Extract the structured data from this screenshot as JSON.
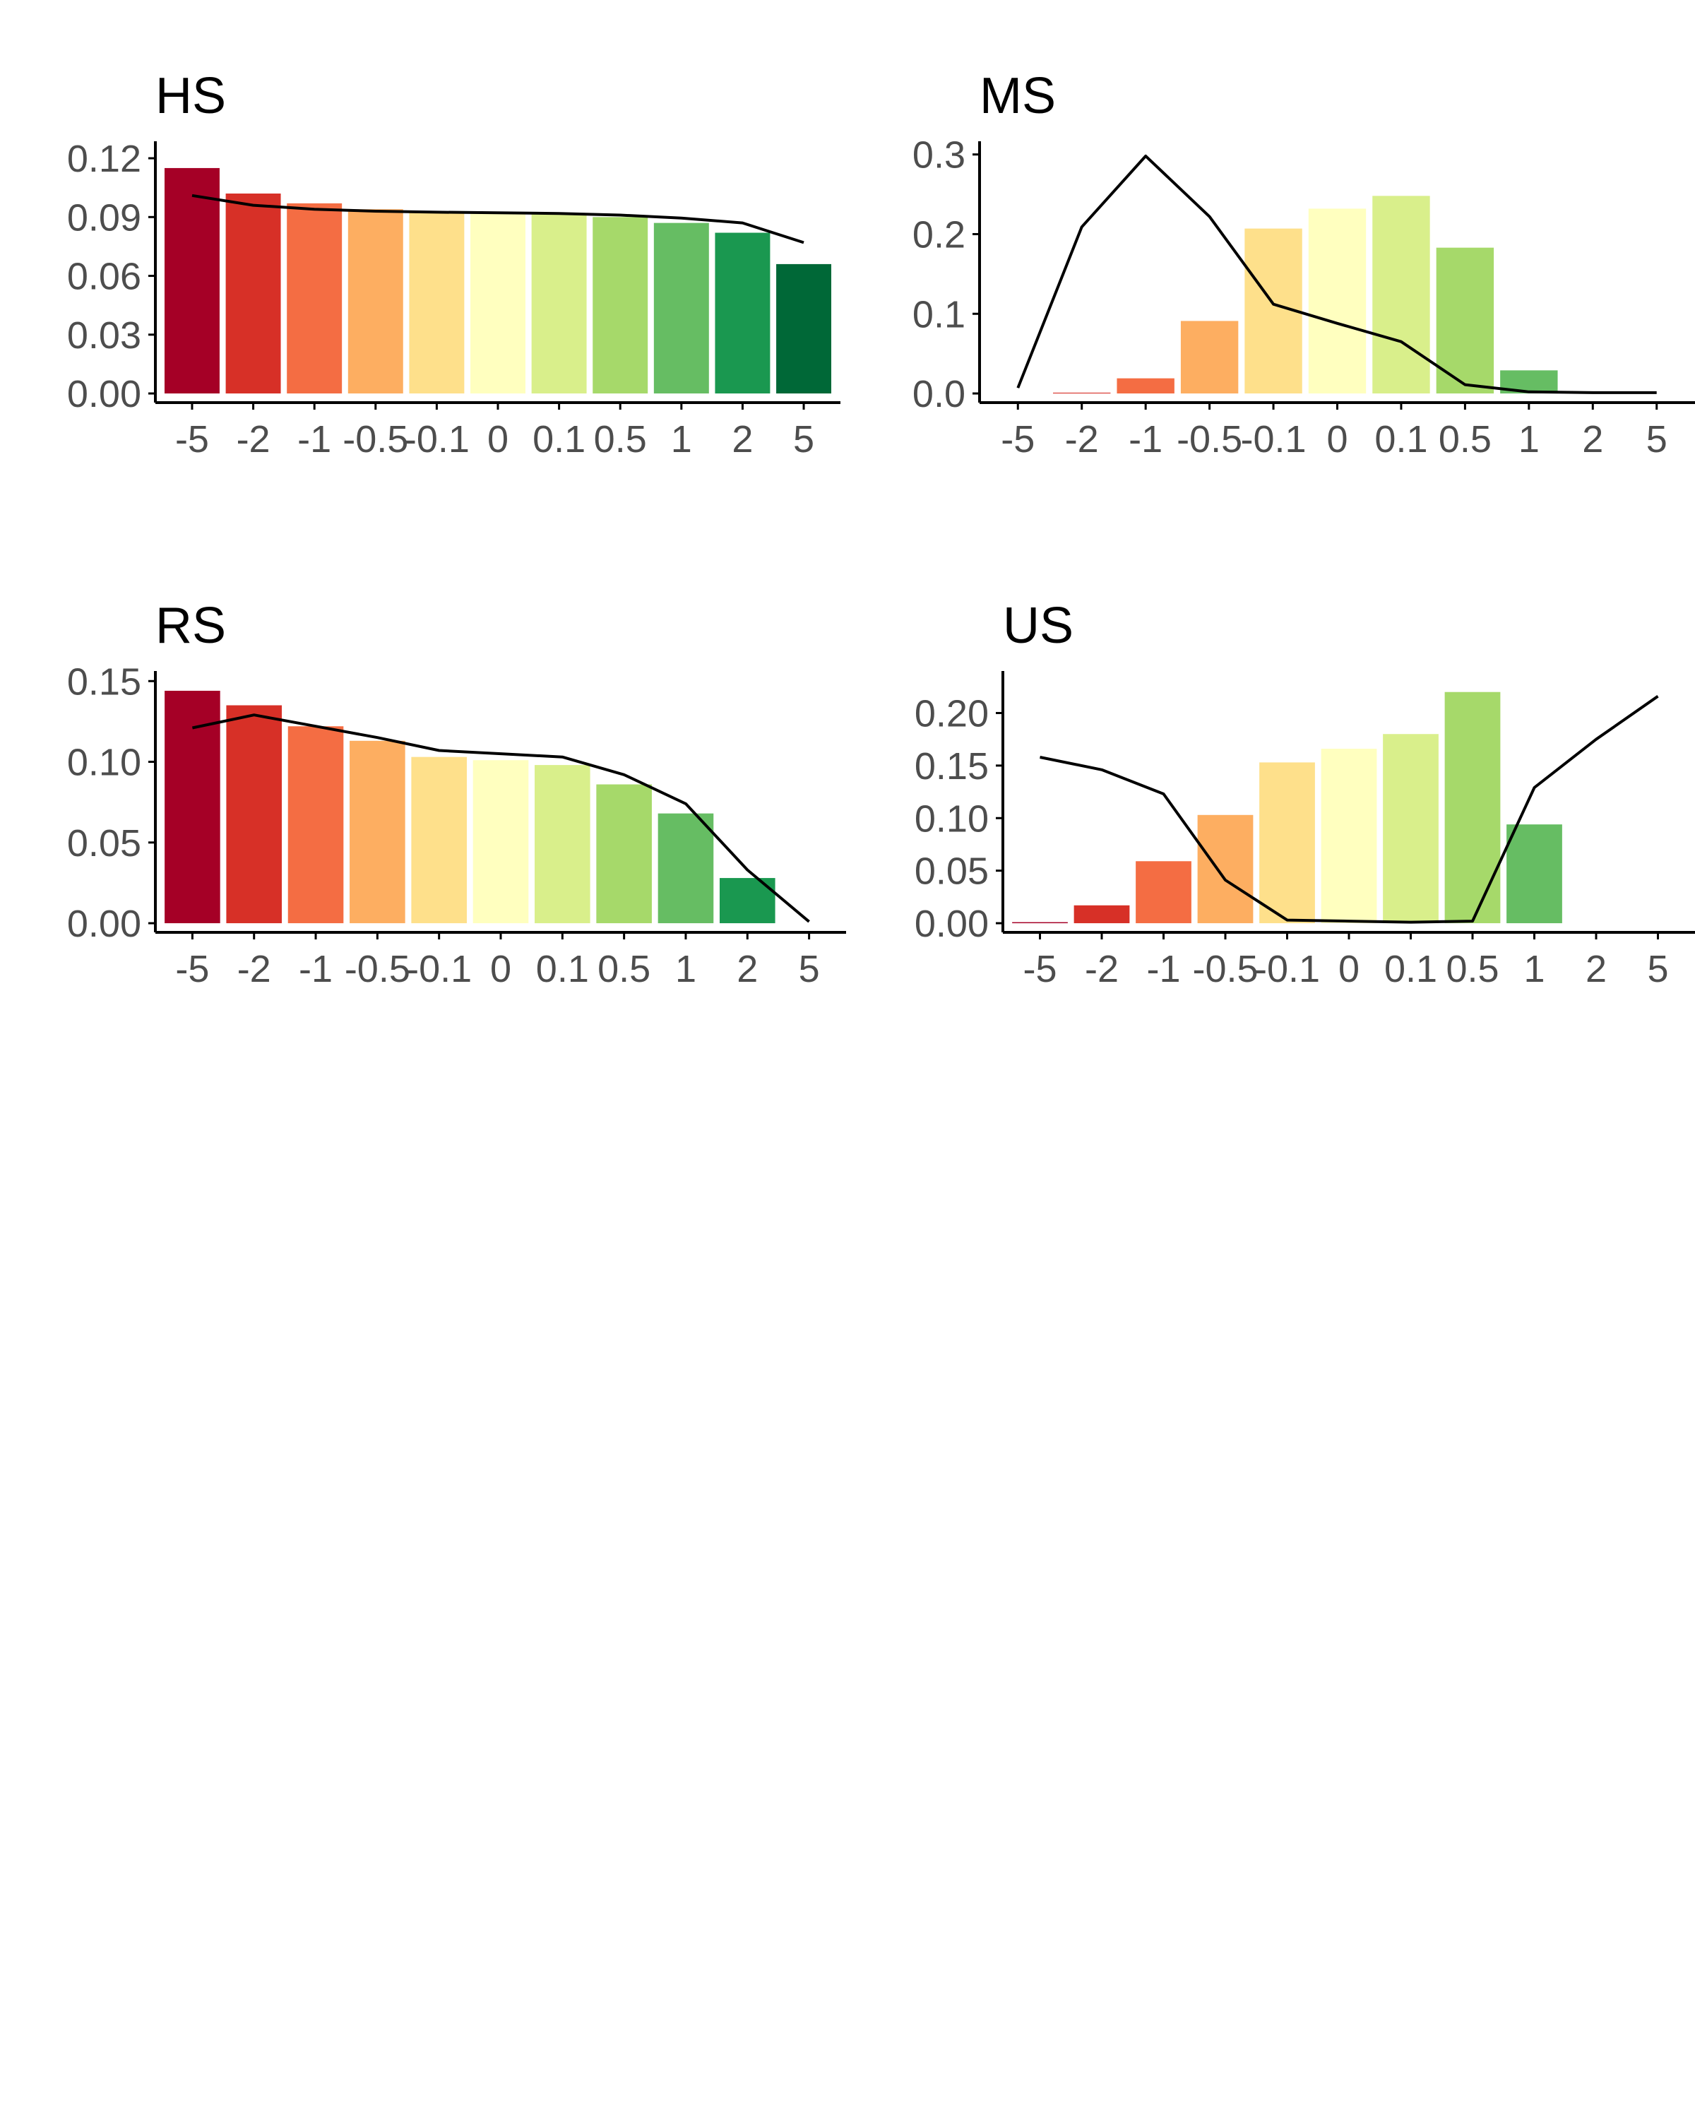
{
  "chart_data": [
    {
      "type": "bar",
      "title": "HS",
      "categories": [
        "-5",
        "-2",
        "-1",
        "-0.5",
        "-0.1",
        "0",
        "0.1",
        "0.5",
        "1",
        "2",
        "5"
      ],
      "yticks": [
        "0.00",
        "0.03",
        "0.06",
        "0.09",
        "0.12"
      ],
      "ylim": [
        0,
        0.126
      ],
      "series": [
        {
          "type": "bar",
          "values": [
            0.115,
            0.102,
            0.097,
            0.094,
            0.093,
            0.092,
            0.092,
            0.09,
            0.087,
            0.082,
            0.066
          ]
        },
        {
          "type": "line",
          "values": [
            0.101,
            0.096,
            0.094,
            0.093,
            0.0925,
            0.0922,
            0.0918,
            0.091,
            0.0895,
            0.087,
            0.077
          ]
        }
      ]
    },
    {
      "type": "bar",
      "title": "MS",
      "categories": [
        "-5",
        "-2",
        "-1",
        "-0.5",
        "-0.1",
        "0",
        "0.1",
        "0.5",
        "1",
        "2",
        "5"
      ],
      "yticks": [
        "0.0",
        "0.1",
        "0.2",
        "0.3"
      ],
      "ylim": [
        0,
        0.31
      ],
      "series": [
        {
          "type": "bar",
          "values": [
            0.0,
            0.001,
            0.019,
            0.091,
            0.207,
            0.232,
            0.248,
            0.183,
            0.029,
            0.0,
            0.0
          ]
        },
        {
          "type": "line",
          "values": [
            0.007,
            0.209,
            0.298,
            0.222,
            0.112,
            0.088,
            0.065,
            0.011,
            0.002,
            0.001,
            0.001
          ]
        }
      ]
    },
    {
      "type": "bar",
      "title": "RS",
      "categories": [
        "-5",
        "-2",
        "-1",
        "-0.5",
        "-0.1",
        "0",
        "0.1",
        "0.5",
        "1",
        "2",
        "5"
      ],
      "yticks": [
        "0.00",
        "0.05",
        "0.10",
        "0.15"
      ],
      "ylim": [
        0,
        0.153
      ],
      "series": [
        {
          "type": "bar",
          "values": [
            0.144,
            0.135,
            0.122,
            0.113,
            0.103,
            0.101,
            0.098,
            0.086,
            0.068,
            0.028,
            0.0
          ]
        },
        {
          "type": "line",
          "values": [
            0.121,
            0.129,
            0.122,
            0.115,
            0.107,
            0.105,
            0.103,
            0.092,
            0.074,
            0.033,
            0.001
          ]
        }
      ]
    },
    {
      "type": "bar",
      "title": "US",
      "categories": [
        "-5",
        "-2",
        "-1",
        "-0.5",
        "-0.1",
        "0",
        "0.1",
        "0.5",
        "1",
        "2",
        "5"
      ],
      "yticks": [
        "0.00",
        "0.05",
        "0.10",
        "0.15",
        "0.20"
      ],
      "ylim": [
        0,
        0.235
      ],
      "series": [
        {
          "type": "bar",
          "values": [
            0.001,
            0.017,
            0.059,
            0.103,
            0.153,
            0.166,
            0.18,
            0.22,
            0.094,
            0.0,
            0.0
          ]
        },
        {
          "type": "line",
          "values": [
            0.158,
            0.146,
            0.123,
            0.041,
            0.003,
            0.002,
            0.001,
            0.002,
            0.129,
            0.175,
            0.216
          ]
        }
      ]
    }
  ],
  "colors": {
    "bars": [
      "#a50026",
      "#d73027",
      "#f46d43",
      "#fdae61",
      "#fee08b",
      "#ffffbf",
      "#d9ef8b",
      "#a6d96a",
      "#66bd63",
      "#1a9850",
      "#006837"
    ],
    "line": "#000000",
    "axis": "#000000",
    "tick_text": "#4d4d4d"
  }
}
